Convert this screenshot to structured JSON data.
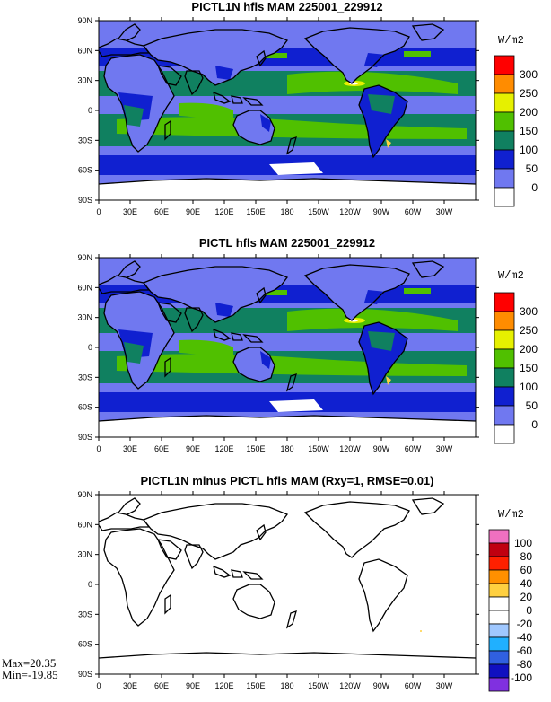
{
  "panels": [
    {
      "id": "top",
      "title": "PICTL1N hfls MAM 225001_229912",
      "units": "W/m2",
      "colorbar": {
        "labels": [
          "300",
          "250",
          "200",
          "150",
          "100",
          "50",
          "0"
        ],
        "colors": [
          "#ff0000",
          "#ff8c00",
          "#e6f000",
          "#50c000",
          "#108060",
          "#1020d0",
          "#7078f0",
          "#ffffff"
        ]
      }
    },
    {
      "id": "middle",
      "title": "PICTL hfls MAM 225001_229912",
      "units": "W/m2",
      "colorbar": {
        "labels": [
          "300",
          "250",
          "200",
          "150",
          "100",
          "50",
          "0"
        ],
        "colors": [
          "#ff0000",
          "#ff8c00",
          "#e6f000",
          "#50c000",
          "#108060",
          "#1020d0",
          "#7078f0",
          "#ffffff"
        ]
      }
    },
    {
      "id": "bottom",
      "title": "PICTL1N minus PICTL hfls MAM (Rxy=1, RMSE=0.01)",
      "units": "W/m2",
      "colorbar": {
        "labels": [
          "100",
          "80",
          "60",
          "40",
          "20",
          "0",
          "-20",
          "-40",
          "-60",
          "-80",
          "-100"
        ],
        "colors": [
          "#f070c0",
          "#c00010",
          "#ff2000",
          "#ff9000",
          "#ffd040",
          "#ffffff",
          "#ffffff",
          "#a0c8ff",
          "#20b0ff",
          "#3060e0",
          "#1010c0",
          "#8030e0"
        ]
      },
      "stats": {
        "max": "Max=20.35",
        "min": "Min=-19.85"
      }
    }
  ],
  "lat_ticks": [
    "90N",
    "60N",
    "30N",
    "0",
    "30S",
    "60S",
    "90S"
  ],
  "lon_ticks": [
    "0",
    "30E",
    "60E",
    "90E",
    "120E",
    "150E",
    "180",
    "150W",
    "120W",
    "90W",
    "60W",
    "30W"
  ]
}
